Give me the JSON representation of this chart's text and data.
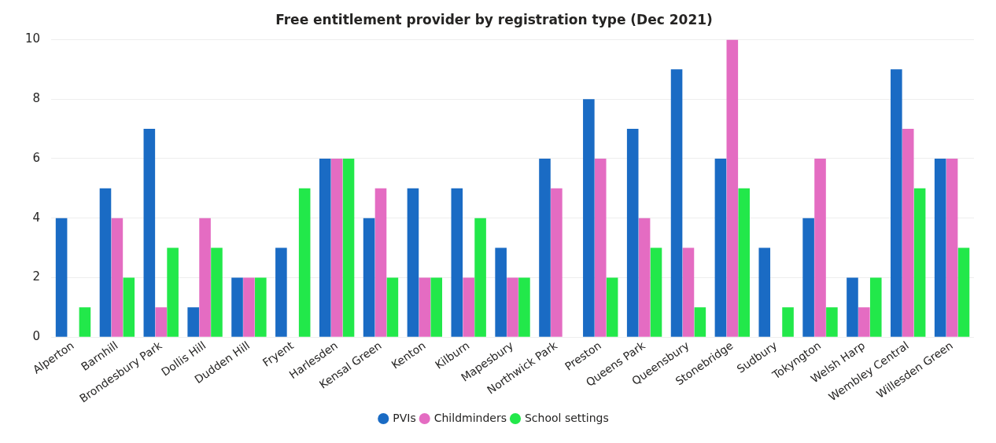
{
  "chart_data": {
    "type": "bar",
    "title": "Free entitlement provider by registration type (Dec 2021)",
    "categories": [
      "Alperton",
      "Barnhill",
      "Brondesbury Park",
      "Dollis Hill",
      "Dudden Hill",
      "Fryent",
      "Harlesden",
      "Kensal Green",
      "Kenton",
      "Kilburn",
      "Mapesbury",
      "Northwick Park",
      "Preston",
      "Queens Park",
      "Queensbury",
      "Stonebridge",
      "Sudbury",
      "Tokyngton",
      "Welsh Harp",
      "Wembley Central",
      "Willesden Green"
    ],
    "series": [
      {
        "name": "PVIs",
        "color": "#1a6bc4",
        "values": [
          4,
          5,
          7,
          1,
          2,
          3,
          6,
          4,
          5,
          5,
          3,
          6,
          8,
          7,
          9,
          6,
          3,
          4,
          2,
          9,
          6
        ]
      },
      {
        "name": "Childminders",
        "color": "#e46cc2",
        "values": [
          null,
          4,
          1,
          4,
          2,
          null,
          6,
          5,
          2,
          2,
          2,
          5,
          6,
          4,
          3,
          10,
          null,
          6,
          1,
          7,
          6
        ]
      },
      {
        "name": "School settings",
        "color": "#22e84a",
        "values": [
          1,
          2,
          3,
          3,
          2,
          5,
          6,
          2,
          2,
          4,
          2,
          null,
          2,
          3,
          1,
          5,
          1,
          1,
          2,
          5,
          3
        ]
      }
    ],
    "ylim": [
      0,
      10
    ],
    "yticks": [
      0,
      2,
      4,
      6,
      8,
      10
    ],
    "grid": "y",
    "legend": "bottom"
  }
}
